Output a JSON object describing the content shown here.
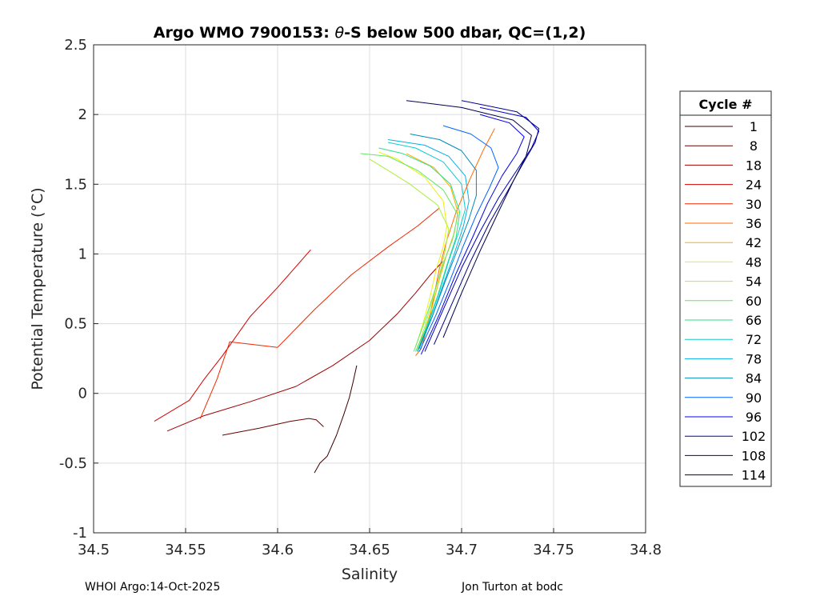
{
  "chart_data": {
    "type": "line",
    "title_prefix": "Argo WMO 7900153: ",
    "title_theta": "θ",
    "title_suffix": "-S below 500 dbar,  QC=(1,2)",
    "xlabel": "Salinity",
    "ylabel": "Potential Temperature (°C)",
    "xlim": [
      34.5,
      34.8
    ],
    "ylim": [
      -1,
      2.5
    ],
    "xticks": [
      "34.5",
      "34.55",
      "34.6",
      "34.65",
      "34.7",
      "34.75",
      "34.8"
    ],
    "yticks": [
      "-1",
      "-0.5",
      "0",
      "0.5",
      "1",
      "1.5",
      "2",
      "2.5"
    ],
    "grid": true,
    "legend_title": "Cycle #",
    "legend_position": "right-outside",
    "series": [
      {
        "name": "1",
        "color": "#3a0000",
        "points": [
          [
            34.62,
            -0.57
          ],
          [
            34.623,
            -0.5
          ],
          [
            34.627,
            -0.45
          ],
          [
            34.632,
            -0.3
          ],
          [
            34.636,
            -0.15
          ],
          [
            34.639,
            -0.03
          ],
          [
            34.641,
            0.08
          ],
          [
            34.643,
            0.2
          ]
        ]
      },
      {
        "name": "8",
        "color": "#6a0000",
        "points": [
          [
            34.57,
            -0.3
          ],
          [
            34.59,
            -0.25
          ],
          [
            34.607,
            -0.2
          ],
          [
            34.617,
            -0.18
          ],
          [
            34.621,
            -0.19
          ],
          [
            34.625,
            -0.24
          ]
        ]
      },
      {
        "name": "18",
        "color": "#a00000",
        "points": [
          [
            34.54,
            -0.27
          ],
          [
            34.56,
            -0.16
          ],
          [
            34.585,
            -0.06
          ],
          [
            34.61,
            0.05
          ],
          [
            34.63,
            0.2
          ],
          [
            34.65,
            0.38
          ],
          [
            34.665,
            0.57
          ],
          [
            34.675,
            0.72
          ],
          [
            34.683,
            0.85
          ],
          [
            34.69,
            0.95
          ]
        ]
      },
      {
        "name": "24",
        "color": "#d40000",
        "points": [
          [
            34.533,
            -0.2
          ],
          [
            34.552,
            -0.05
          ],
          [
            34.56,
            0.1
          ],
          [
            34.57,
            0.27
          ],
          [
            34.585,
            0.55
          ],
          [
            34.6,
            0.76
          ],
          [
            34.618,
            1.03
          ]
        ]
      },
      {
        "name": "30",
        "color": "#f02800",
        "points": [
          [
            34.558,
            -0.18
          ],
          [
            34.567,
            0.1
          ],
          [
            34.574,
            0.37
          ],
          [
            34.6,
            0.33
          ],
          [
            34.62,
            0.6
          ],
          [
            34.64,
            0.85
          ],
          [
            34.66,
            1.05
          ],
          [
            34.676,
            1.2
          ],
          [
            34.688,
            1.33
          ]
        ]
      },
      {
        "name": "36",
        "color": "#ff6a00",
        "points": [
          [
            34.675,
            0.27
          ],
          [
            34.678,
            0.32
          ],
          [
            34.682,
            0.5
          ],
          [
            34.685,
            0.7
          ],
          [
            34.688,
            0.9
          ],
          [
            34.692,
            1.1
          ],
          [
            34.697,
            1.3
          ],
          [
            34.705,
            1.55
          ],
          [
            34.712,
            1.75
          ],
          [
            34.718,
            1.9
          ]
        ]
      },
      {
        "name": "42",
        "color": "#ffae00",
        "points": [
          [
            34.676,
            0.3
          ],
          [
            34.68,
            0.45
          ],
          [
            34.684,
            0.62
          ],
          [
            34.688,
            0.82
          ],
          [
            34.692,
            1.0
          ],
          [
            34.696,
            1.15
          ],
          [
            34.698,
            1.3
          ],
          [
            34.694,
            1.48
          ],
          [
            34.685,
            1.62
          ],
          [
            34.67,
            1.72
          ]
        ]
      },
      {
        "name": "48",
        "color": "#eeee10",
        "points": [
          [
            34.675,
            0.33
          ],
          [
            34.679,
            0.5
          ],
          [
            34.683,
            0.7
          ],
          [
            34.686,
            0.88
          ],
          [
            34.69,
            1.05
          ],
          [
            34.692,
            1.2
          ],
          [
            34.69,
            1.38
          ],
          [
            34.68,
            1.55
          ],
          [
            34.665,
            1.68
          ],
          [
            34.655,
            1.73
          ]
        ]
      },
      {
        "name": "54",
        "color": "#aaf03c",
        "points": [
          [
            34.676,
            0.32
          ],
          [
            34.68,
            0.48
          ],
          [
            34.684,
            0.66
          ],
          [
            34.688,
            0.85
          ],
          [
            34.691,
            1.02
          ],
          [
            34.693,
            1.18
          ],
          [
            34.687,
            1.35
          ],
          [
            34.672,
            1.5
          ],
          [
            34.66,
            1.6
          ],
          [
            34.65,
            1.68
          ]
        ]
      },
      {
        "name": "60",
        "color": "#66e666",
        "points": [
          [
            34.674,
            0.3
          ],
          [
            34.68,
            0.52
          ],
          [
            34.685,
            0.72
          ],
          [
            34.69,
            0.93
          ],
          [
            34.695,
            1.1
          ],
          [
            34.698,
            1.28
          ],
          [
            34.69,
            1.46
          ],
          [
            34.676,
            1.6
          ],
          [
            34.66,
            1.7
          ],
          [
            34.645,
            1.72
          ]
        ]
      },
      {
        "name": "66",
        "color": "#2ee08a",
        "points": [
          [
            34.675,
            0.3
          ],
          [
            34.681,
            0.48
          ],
          [
            34.687,
            0.7
          ],
          [
            34.692,
            0.92
          ],
          [
            34.697,
            1.12
          ],
          [
            34.699,
            1.3
          ],
          [
            34.694,
            1.5
          ],
          [
            34.683,
            1.63
          ],
          [
            34.668,
            1.72
          ],
          [
            34.655,
            1.76
          ]
        ]
      },
      {
        "name": "72",
        "color": "#10cccc",
        "points": [
          [
            34.676,
            0.3
          ],
          [
            34.682,
            0.5
          ],
          [
            34.688,
            0.73
          ],
          [
            34.693,
            0.95
          ],
          [
            34.698,
            1.14
          ],
          [
            34.702,
            1.32
          ],
          [
            34.7,
            1.5
          ],
          [
            34.69,
            1.66
          ],
          [
            34.675,
            1.76
          ],
          [
            34.66,
            1.8
          ]
        ]
      },
      {
        "name": "78",
        "color": "#00b4e6",
        "points": [
          [
            34.677,
            0.32
          ],
          [
            34.684,
            0.55
          ],
          [
            34.69,
            0.78
          ],
          [
            34.696,
            1.0
          ],
          [
            34.701,
            1.2
          ],
          [
            34.704,
            1.38
          ],
          [
            34.702,
            1.56
          ],
          [
            34.693,
            1.7
          ],
          [
            34.68,
            1.78
          ],
          [
            34.66,
            1.82
          ]
        ]
      },
      {
        "name": "84",
        "color": "#008cb4",
        "points": [
          [
            34.676,
            0.3
          ],
          [
            34.684,
            0.55
          ],
          [
            34.691,
            0.8
          ],
          [
            34.698,
            1.04
          ],
          [
            34.704,
            1.25
          ],
          [
            34.708,
            1.42
          ],
          [
            34.708,
            1.6
          ],
          [
            34.7,
            1.74
          ],
          [
            34.688,
            1.82
          ],
          [
            34.672,
            1.86
          ]
        ]
      },
      {
        "name": "90",
        "color": "#0064ff",
        "points": [
          [
            34.677,
            0.3
          ],
          [
            34.686,
            0.56
          ],
          [
            34.694,
            0.82
          ],
          [
            34.701,
            1.06
          ],
          [
            34.708,
            1.28
          ],
          [
            34.715,
            1.47
          ],
          [
            34.72,
            1.62
          ],
          [
            34.716,
            1.76
          ],
          [
            34.705,
            1.86
          ],
          [
            34.69,
            1.92
          ]
        ]
      },
      {
        "name": "96",
        "color": "#0000f0",
        "points": [
          [
            34.678,
            0.28
          ],
          [
            34.688,
            0.57
          ],
          [
            34.697,
            0.86
          ],
          [
            34.706,
            1.12
          ],
          [
            34.714,
            1.36
          ],
          [
            34.722,
            1.56
          ],
          [
            34.73,
            1.72
          ],
          [
            34.734,
            1.84
          ],
          [
            34.726,
            1.94
          ],
          [
            34.71,
            2.0
          ]
        ]
      },
      {
        "name": "102",
        "color": "#0000bb",
        "points": [
          [
            34.68,
            0.3
          ],
          [
            34.69,
            0.6
          ],
          [
            34.7,
            0.9
          ],
          [
            34.71,
            1.16
          ],
          [
            34.72,
            1.4
          ],
          [
            34.73,
            1.6
          ],
          [
            34.738,
            1.76
          ],
          [
            34.742,
            1.88
          ],
          [
            34.735,
            1.98
          ],
          [
            34.71,
            2.05
          ]
        ]
      },
      {
        "name": "108",
        "color": "#000088",
        "points": [
          [
            34.685,
            0.35
          ],
          [
            34.695,
            0.65
          ],
          [
            34.705,
            0.95
          ],
          [
            34.715,
            1.22
          ],
          [
            34.725,
            1.45
          ],
          [
            34.733,
            1.64
          ],
          [
            34.74,
            1.8
          ],
          [
            34.742,
            1.9
          ],
          [
            34.73,
            2.02
          ],
          [
            34.7,
            2.1
          ]
        ]
      },
      {
        "name": "114",
        "color": "#00004d",
        "points": [
          [
            34.69,
            0.4
          ],
          [
            34.7,
            0.72
          ],
          [
            34.71,
            1.02
          ],
          [
            34.72,
            1.3
          ],
          [
            34.728,
            1.52
          ],
          [
            34.735,
            1.7
          ],
          [
            34.738,
            1.85
          ],
          [
            34.728,
            1.96
          ],
          [
            34.7,
            2.05
          ],
          [
            34.67,
            2.1
          ]
        ]
      }
    ]
  },
  "footer": {
    "left": "WHOI Argo:14-Oct-2025",
    "right": "Jon Turton at bodc"
  }
}
